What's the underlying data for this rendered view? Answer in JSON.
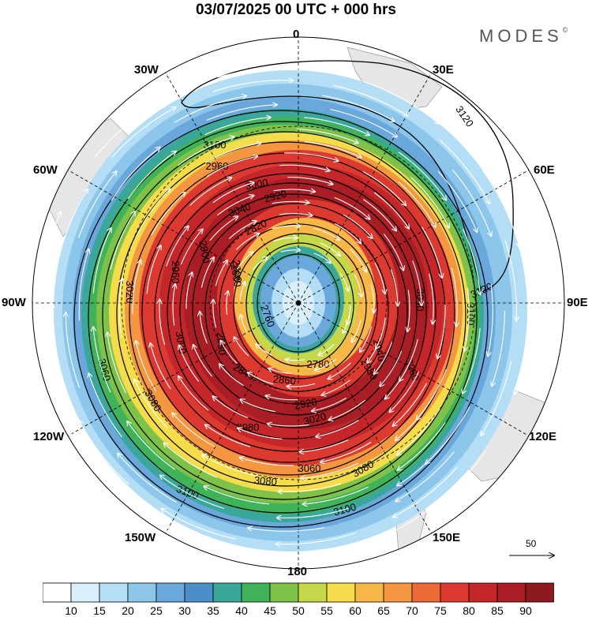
{
  "title": "03/07/2025  00 UTC  + 000 hrs",
  "brand": {
    "name": "MODES",
    "mark": "©"
  },
  "longitude_labels": {
    "top": "0",
    "top_right": "30E",
    "right_upper": "60E",
    "right": "90E",
    "right_lower": "120E",
    "bottom_right": "150E",
    "bottom": "180",
    "bottom_left": "150W",
    "left_lower": "120W",
    "left": "90W",
    "left_upper": "60W",
    "top_left": "30W"
  },
  "contour_labels": [
    "3120",
    "3120",
    "3100",
    "3100",
    "3100",
    "3100",
    "3080",
    "3080",
    "3080",
    "3060",
    "3060",
    "3060",
    "3040",
    "3040",
    "3020",
    "3020",
    "3000",
    "3000",
    "2980",
    "2980",
    "2960",
    "2960",
    "2940",
    "2920",
    "2920",
    "2900",
    "2880",
    "2880",
    "2860",
    "2840",
    "2820",
    "2800",
    "2780",
    "2760"
  ],
  "vector_reference": {
    "value": "50"
  },
  "colorbar": {
    "labels": [
      "10",
      "15",
      "20",
      "25",
      "30",
      "35",
      "40",
      "45",
      "50",
      "55",
      "60",
      "65",
      "70",
      "75",
      "80",
      "85",
      "90"
    ],
    "colors": [
      "#ffffff",
      "#d9f0fc",
      "#b3def5",
      "#8cc6ea",
      "#6aa8dc",
      "#4c8fc8",
      "#3aa79a",
      "#40b35a",
      "#7ec24a",
      "#c4d84a",
      "#f5dc4a",
      "#f8b848",
      "#f59640",
      "#ec6a36",
      "#dc3a30",
      "#c4262a",
      "#a81e24",
      "#8c1a1e"
    ]
  }
}
